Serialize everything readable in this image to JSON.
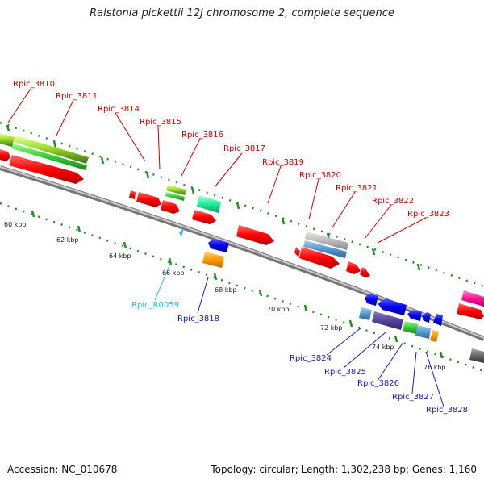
{
  "title": "Ralstonia pickettii 12J chromosome 2, complete sequence",
  "footer": {
    "accession": "Accession: NC_010678",
    "summary": "Topology: circular; Length: 1,302,238 bp; Genes: 1,160"
  },
  "colors": {
    "label_forward": "#cc0000",
    "label_reverse": "#1a1ab8",
    "label_rna": "#33bbdd",
    "tick_green": "#2a8a2a",
    "backbone": "#999999"
  },
  "scale_labels": [
    "60 kbp",
    "62 kbp",
    "64 kbp",
    "66 kbp",
    "68 kbp",
    "70 kbp",
    "72 kbp",
    "74 kbp",
    "76 kbp"
  ],
  "gene_labels_forward": [
    "Rpic_3810",
    "Rpic_3811",
    "Rpic_3814",
    "Rpic_3815",
    "Rpic_3816",
    "Rpic_3817",
    "Rpic_3819",
    "Rpic_3820",
    "Rpic_3821",
    "Rpic_3822",
    "Rpic_3823"
  ],
  "gene_labels_reverse": [
    "Rpic_R0059",
    "Rpic_3818",
    "Rpic_3824",
    "Rpic_3825",
    "Rpic_3826",
    "Rpic_3827",
    "Rpic_3828"
  ]
}
